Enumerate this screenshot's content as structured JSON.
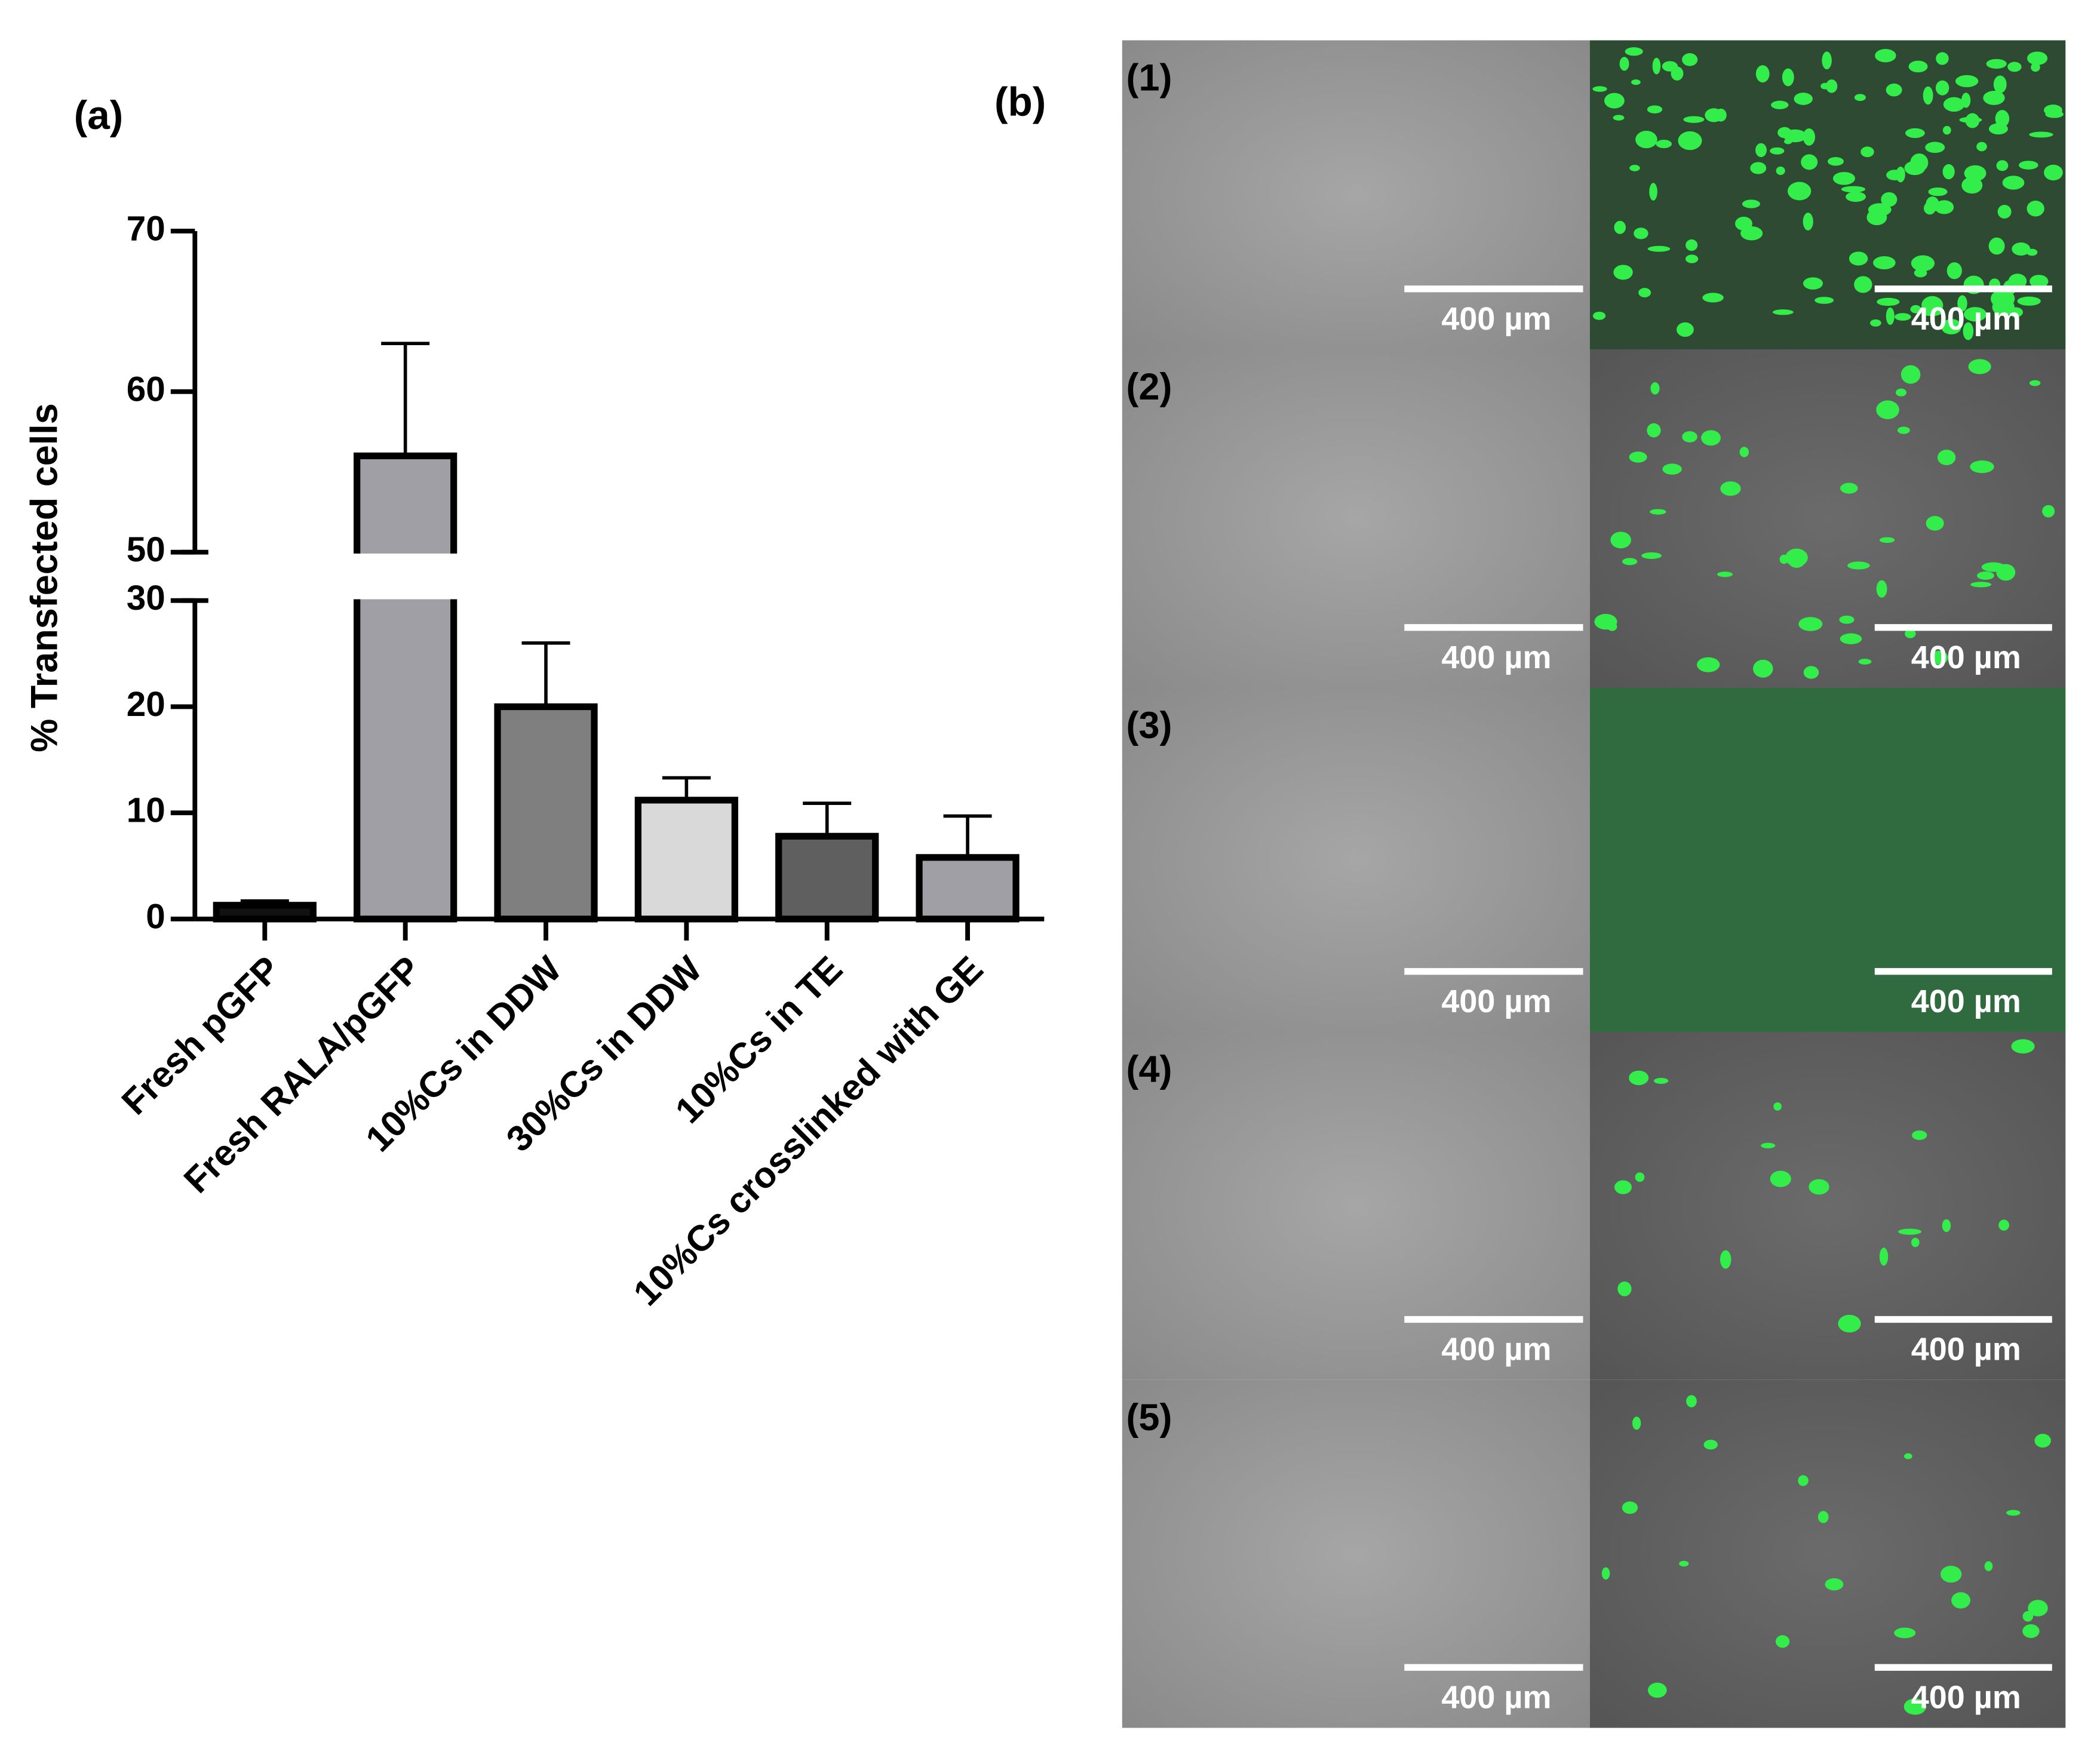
{
  "chart_data": {
    "type": "bar",
    "panel_label": "(a)",
    "ylabel": "% Transfected cells",
    "categories": [
      "Fresh pGFP",
      "Fresh RALA/pGFP",
      "10%Cs in DDW",
      "30%Cs in DDW",
      "10%Cs in TE",
      "10%Cs crosslinked with GE"
    ],
    "values": [
      1.3,
      56,
      20,
      11.2,
      7.8,
      5.8
    ],
    "errors": [
      0.4,
      7,
      6,
      2.1,
      3.1,
      3.9
    ],
    "colors": [
      "#111111",
      "#a19fa6",
      "#7f7f7f",
      "#d9d9d9",
      "#5f5f5f",
      "#a19fa6"
    ],
    "ylim": [
      0,
      70
    ],
    "ybreak": [
      30,
      50
    ],
    "yticks": [
      0,
      10,
      20,
      30,
      50,
      60,
      70
    ],
    "grid": false
  },
  "panel_b": {
    "label": "(b)",
    "rows": [
      {
        "label": "(1)",
        "scale_bars": [
          "400 µm",
          "400 µm"
        ]
      },
      {
        "label": "(2)",
        "scale_bars": [
          "400 µm",
          "400 µm"
        ]
      },
      {
        "label": "(3)",
        "scale_bars": [
          "400 µm",
          "400 µm"
        ]
      },
      {
        "label": "(4)",
        "scale_bars": [
          "400 µm",
          "400 µm"
        ]
      },
      {
        "label": "(5)",
        "scale_bars": [
          "400 µm",
          "400 µm"
        ]
      }
    ]
  }
}
